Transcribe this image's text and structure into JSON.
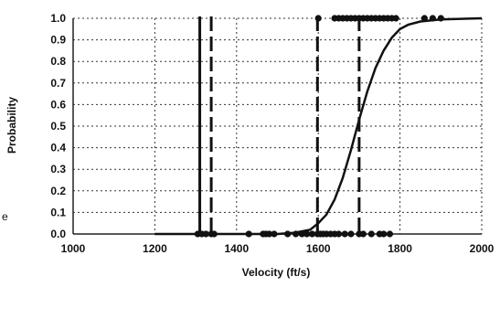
{
  "chart_data": {
    "type": "scatter",
    "title": "",
    "xlabel": "Velocity (ft/s)",
    "ylabel": "Probability",
    "xlim": [
      1000,
      2000
    ],
    "ylim": [
      0,
      1
    ],
    "xticks": [
      1000,
      1200,
      1400,
      1600,
      1800,
      2000
    ],
    "yticks": [
      0.0,
      0.1,
      0.2,
      0.3,
      0.4,
      0.5,
      0.6,
      0.7,
      0.8,
      0.9,
      1.0
    ],
    "grid": true,
    "legend": "none",
    "series": [
      {
        "type": "scatter",
        "points": [
          [
            1305,
            0
          ],
          [
            1315,
            0
          ],
          [
            1325,
            0
          ],
          [
            1338,
            0
          ],
          [
            1345,
            0
          ],
          [
            1430,
            0
          ],
          [
            1465,
            0
          ],
          [
            1472,
            0
          ],
          [
            1480,
            0
          ],
          [
            1492,
            0
          ],
          [
            1525,
            0
          ],
          [
            1545,
            0
          ],
          [
            1560,
            0
          ],
          [
            1572,
            0
          ],
          [
            1585,
            0
          ],
          [
            1598,
            0
          ],
          [
            1605,
            0
          ],
          [
            1612,
            0
          ],
          [
            1620,
            0
          ],
          [
            1630,
            0
          ],
          [
            1640,
            0
          ],
          [
            1650,
            0
          ],
          [
            1665,
            0
          ],
          [
            1680,
            0
          ],
          [
            1700,
            0
          ],
          [
            1710,
            0
          ],
          [
            1730,
            0
          ],
          [
            1750,
            0
          ],
          [
            1760,
            0
          ],
          [
            1775,
            0
          ],
          [
            1600,
            1
          ],
          [
            1640,
            1
          ],
          [
            1650,
            1
          ],
          [
            1660,
            1
          ],
          [
            1670,
            1
          ],
          [
            1680,
            1
          ],
          [
            1690,
            1
          ],
          [
            1700,
            1
          ],
          [
            1710,
            1
          ],
          [
            1720,
            1
          ],
          [
            1730,
            1
          ],
          [
            1740,
            1
          ],
          [
            1750,
            1
          ],
          [
            1760,
            1
          ],
          [
            1770,
            1
          ],
          [
            1780,
            1
          ],
          [
            1790,
            1
          ],
          [
            1860,
            1
          ],
          [
            1880,
            1
          ],
          [
            1900,
            1
          ]
        ]
      },
      {
        "type": "line",
        "x": [
          1200,
          1500,
          1540,
          1580,
          1600,
          1620,
          1640,
          1660,
          1680,
          1700,
          1720,
          1740,
          1760,
          1780,
          1800,
          1820,
          1850,
          1900,
          2000
        ],
        "y": [
          0.0,
          0.0,
          0.005,
          0.02,
          0.05,
          0.09,
          0.16,
          0.26,
          0.39,
          0.53,
          0.66,
          0.77,
          0.85,
          0.91,
          0.95,
          0.97,
          0.985,
          0.995,
          1.0
        ]
      }
    ],
    "vertical_lines": [
      {
        "x": 1310,
        "style": "solid"
      },
      {
        "x": 1338,
        "style": "dashed"
      },
      {
        "x": 1598,
        "style": "dashed"
      },
      {
        "x": 1700,
        "style": "dashed"
      }
    ],
    "extra_labels": [
      "e"
    ]
  }
}
